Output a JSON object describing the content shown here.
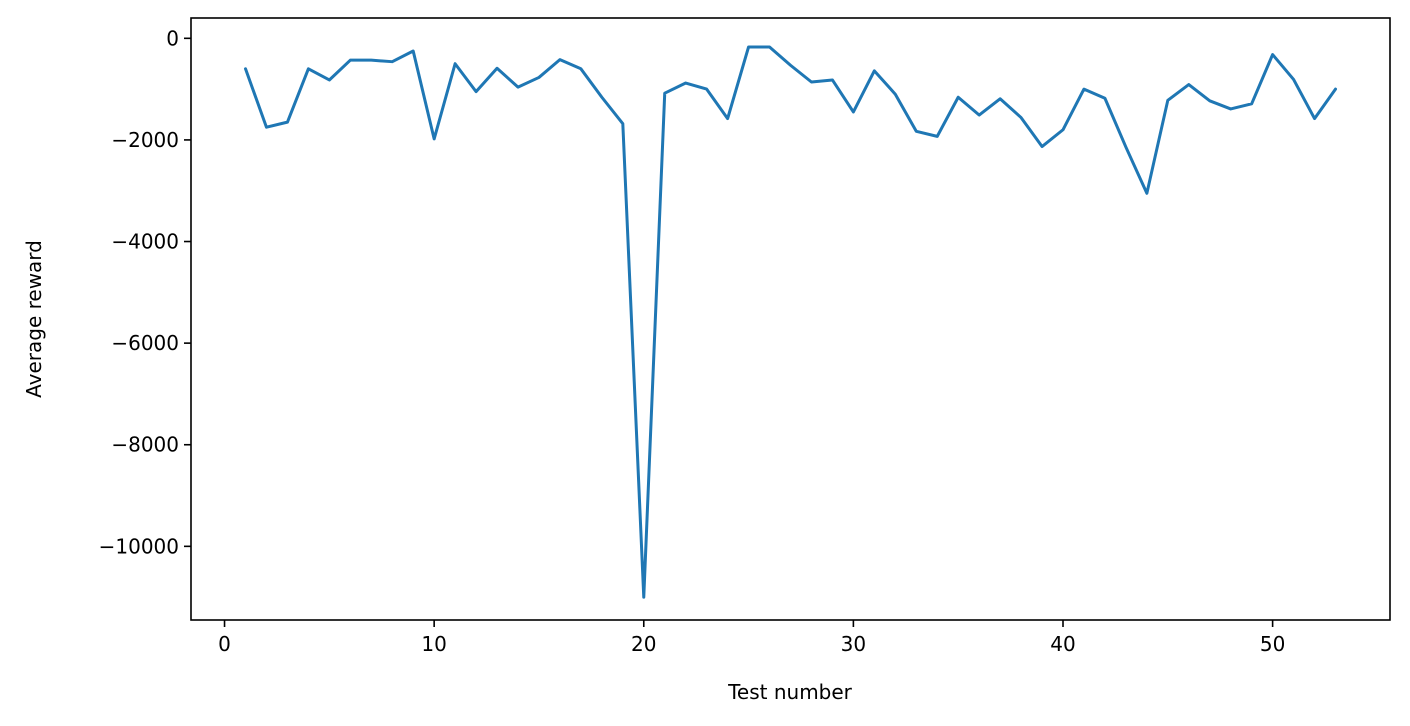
{
  "chart_data": {
    "type": "line",
    "title": "",
    "xlabel": "Test number",
    "ylabel": "Average reward",
    "xlim": [
      -1.6,
      55.6
    ],
    "ylim": [
      -11450,
      400
    ],
    "xticks": [
      0,
      10,
      20,
      30,
      40,
      50
    ],
    "xtick_labels": [
      "0",
      "10",
      "20",
      "30",
      "40",
      "50"
    ],
    "yticks": [
      0,
      -2000,
      -4000,
      -6000,
      -8000,
      -10000
    ],
    "ytick_labels": [
      "0",
      "−2000",
      "−4000",
      "−6000",
      "−8000",
      "−10000"
    ],
    "grid": false,
    "legend": "none",
    "series": [
      {
        "color": "#1f77b4",
        "x": [
          1,
          2,
          3,
          4,
          5,
          6,
          7,
          8,
          9,
          10,
          11,
          12,
          13,
          14,
          15,
          16,
          17,
          18,
          19,
          20,
          21,
          22,
          23,
          24,
          25,
          26,
          27,
          28,
          29,
          30,
          31,
          32,
          33,
          34,
          35,
          36,
          37,
          38,
          39,
          40,
          41,
          42,
          43,
          44,
          45,
          46,
          47,
          48,
          49,
          50,
          51,
          52,
          53
        ],
        "y": [
          -600,
          -1750,
          -1650,
          -600,
          -820,
          -430,
          -430,
          -460,
          -250,
          -1980,
          -500,
          -1050,
          -590,
          -960,
          -770,
          -420,
          -600,
          -1160,
          -1680,
          -11000,
          -1080,
          -880,
          -1000,
          -1580,
          -170,
          -170,
          -530,
          -860,
          -820,
          -1450,
          -640,
          -1100,
          -1830,
          -1930,
          -1160,
          -1510,
          -1190,
          -1560,
          -2130,
          -1800,
          -1000,
          -1180,
          -2140,
          -3050,
          -1220,
          -910,
          -1230,
          -1390,
          -1290,
          -320,
          -810,
          -1580,
          -1000
        ]
      }
    ]
  }
}
